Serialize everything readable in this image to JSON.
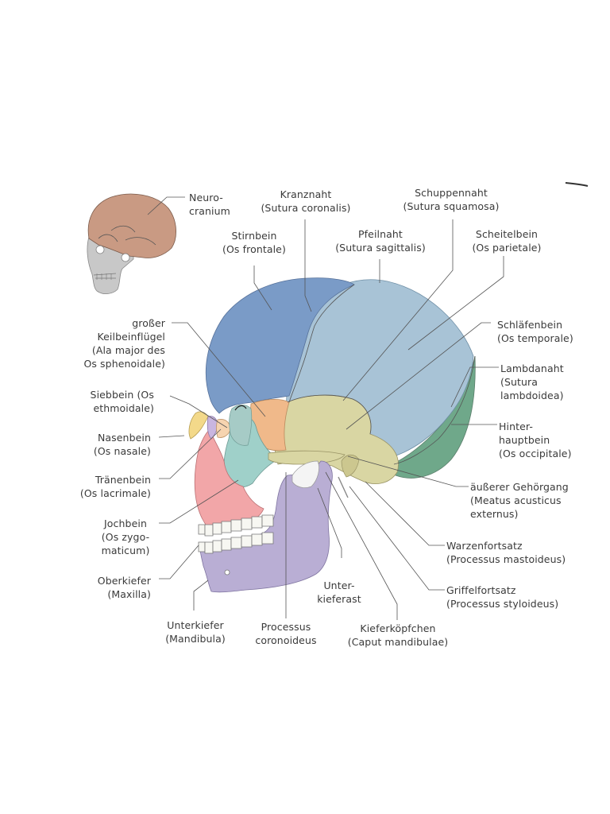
{
  "colors": {
    "frontal": "#7a9bc7",
    "parietal": "#a8c3d6",
    "occipital": "#6fa88a",
    "temporal": "#d9d6a3",
    "sphenoid": "#f0b98a",
    "zygomatic": "#9fd0c9",
    "maxilla": "#f2a6a8",
    "mandible": "#b9aed4",
    "nasal": "#f3d98a",
    "ethmoid": "#c9b6e0",
    "lacrimal": "#f6d4b0",
    "neurocranium": "#c99a83",
    "face_small": "#c8c8c8"
  },
  "labels": {
    "neurocranium": [
      "Neuro-",
      "cranium"
    ],
    "kranznaht": [
      "Kranznaht",
      "(Sutura coronalis)"
    ],
    "schuppennaht": [
      "Schuppennaht",
      "(Sutura squamosa)"
    ],
    "stirnbein": [
      "Stirnbein",
      "(Os frontale)"
    ],
    "pfeilnaht": [
      "Pfeilnaht",
      "(Sutura sagittalis)"
    ],
    "scheitelbein": [
      "Scheitelbein",
      "(Os parietale)"
    ],
    "keilbeinfluegel": [
      "großer",
      "Keilbeinflügel",
      "(Ala major des",
      "Os sphenoidale)"
    ],
    "schlaefenbein": [
      "Schläfenbein",
      "(Os temporale)"
    ],
    "lambdanaht": [
      "Lambdanaht",
      "(Sutura",
      "lambdoidea)"
    ],
    "siebbein": [
      "Siebbein (Os",
      "ethmoidale)"
    ],
    "hinterhauptbein": [
      "Hinter-",
      "hauptbein",
      "(Os occipitale)"
    ],
    "nasenbein": [
      "Nasenbein",
      "(Os nasale)"
    ],
    "traenenbein": [
      "Tränenbein",
      "(Os lacrimale)"
    ],
    "gehoergang": [
      "äußerer Gehörgang",
      "(Meatus acusticus",
      "externus)"
    ],
    "jochbein": [
      "Jochbein",
      "(Os zygo-",
      "maticum)"
    ],
    "warzenfortsatz": [
      "Warzenfortsatz",
      "(Processus mastoideus)"
    ],
    "oberkiefer": [
      "Oberkiefer",
      "(Maxilla)"
    ],
    "unterkieferast": [
      "Unter-",
      "kieferast"
    ],
    "griffelfortsatz": [
      "Griffelfortsatz",
      "(Processus styloideus)"
    ],
    "unterkiefer": [
      "Unterkiefer",
      "(Mandibula)"
    ],
    "processus_coronoideus": [
      "Processus",
      "coronoideus"
    ],
    "kieferkoepfchen": [
      "Kieferköpfchen",
      "(Caput mandibulae)"
    ]
  }
}
